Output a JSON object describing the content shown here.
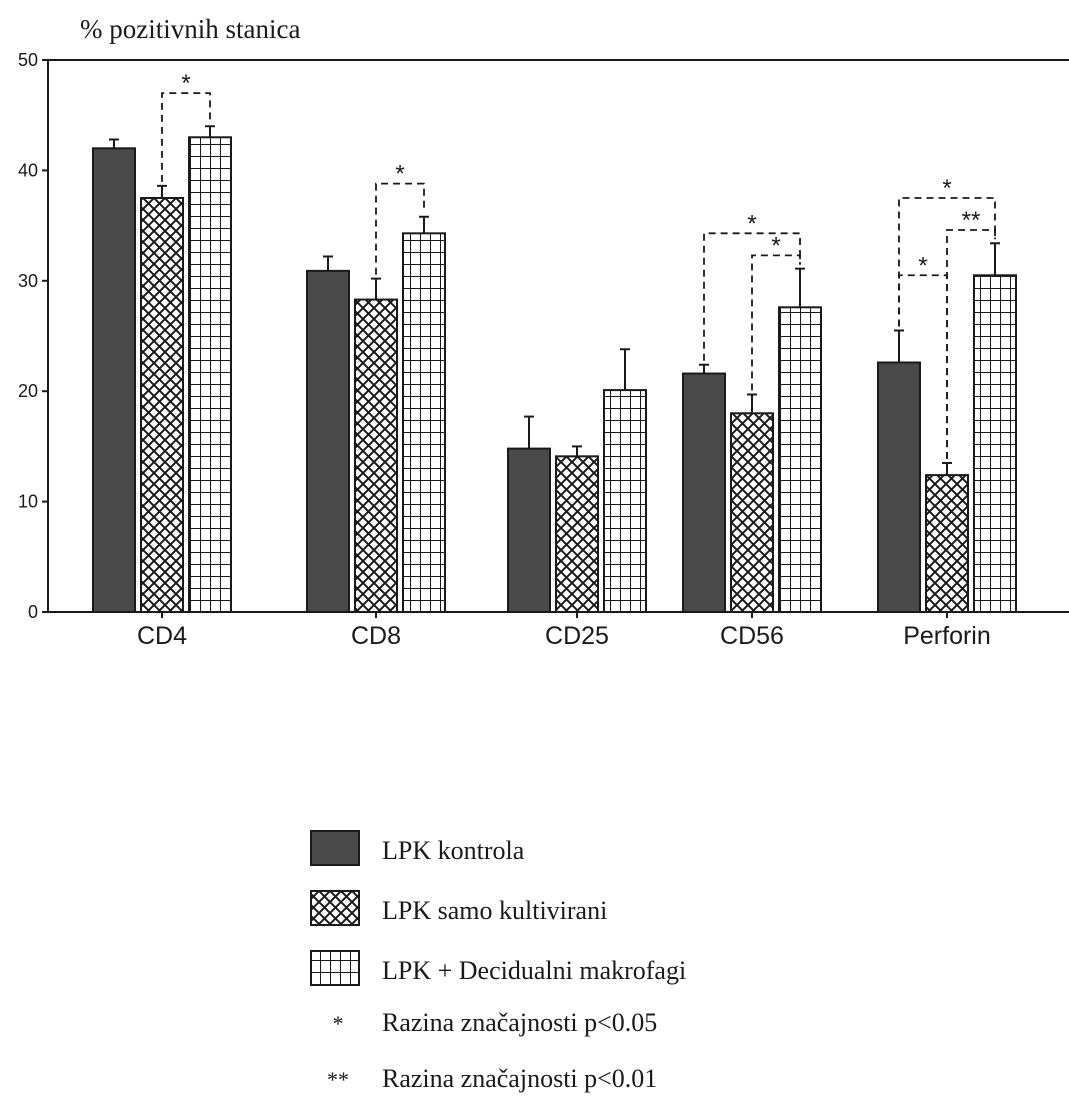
{
  "chart_data": {
    "type": "bar",
    "ylabel": "%   pozitivnih  stanica",
    "ylim": [
      0,
      50
    ],
    "yticks": [
      0,
      10,
      20,
      30,
      40,
      50
    ],
    "categories": [
      "CD4",
      "CD8",
      "CD25",
      "CD56",
      "Perforin"
    ],
    "series": [
      {
        "name": "LPK  kontrola",
        "pattern": "solid",
        "values": [
          42.0,
          30.9,
          14.8,
          21.6,
          22.6
        ],
        "errors": [
          0.8,
          1.3,
          2.9,
          0.8,
          2.9
        ]
      },
      {
        "name": "LPK  samo  kultivirani",
        "pattern": "crosshatch",
        "values": [
          37.5,
          28.3,
          14.1,
          18.0,
          12.4
        ],
        "errors": [
          1.1,
          1.9,
          0.9,
          1.7,
          1.1
        ]
      },
      {
        "name": "LPK  +  Decidualni  makrofagi",
        "pattern": "grid",
        "values": [
          43.0,
          34.3,
          20.1,
          27.6,
          30.5
        ],
        "errors": [
          1.0,
          1.5,
          3.7,
          3.5,
          2.9
        ]
      }
    ],
    "significance": [
      {
        "category": 0,
        "from": 1,
        "to": 2,
        "level": 47.0,
        "label": "*"
      },
      {
        "category": 1,
        "from": 1,
        "to": 2,
        "level": 38.8,
        "label": "*"
      },
      {
        "category": 3,
        "from": 0,
        "to": 2,
        "level": 34.3,
        "label": "*"
      },
      {
        "category": 3,
        "from": 1,
        "to": 2,
        "level": 32.3,
        "label": "*"
      },
      {
        "category": 4,
        "from": 0,
        "to": 1,
        "level": 30.5,
        "label": "*"
      },
      {
        "category": 4,
        "from": 1,
        "to": 2,
        "level": 34.6,
        "label": "**"
      },
      {
        "category": 4,
        "from": 0,
        "to": 2,
        "level": 37.5,
        "label": "*"
      }
    ],
    "legend": {
      "placement": "bottom-center",
      "entries": [
        "LPK  kontrola",
        "LPK  samo  kultivirani",
        "LPK  +  Decidualni  makrofagi"
      ],
      "notes": [
        {
          "symbol": "*",
          "text": "Razina  značajnosti  p<0.05"
        },
        {
          "symbol": "**",
          "text": "Razina  značajnosti  p<0.01"
        }
      ]
    },
    "colors": {
      "solid": "#4a4a4a",
      "ink": "#1a1a1a"
    }
  }
}
